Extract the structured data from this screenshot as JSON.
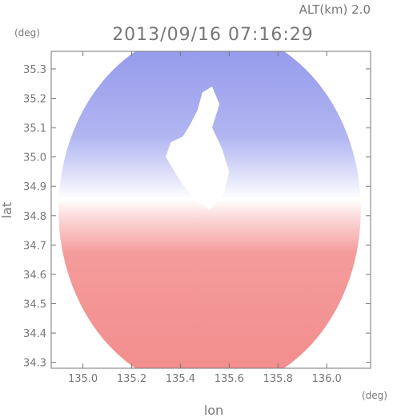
{
  "header": {
    "altitude_label": "ALT(km) 2.0",
    "timestamp": "2013/09/16 07:16:29"
  },
  "colors": {
    "toward_radar": "#7b82e6",
    "away_from_radar": "#f28b8b",
    "axis": "#777777"
  },
  "chart_data": {
    "type": "heatmap",
    "title": "2013/09/16 07:16:29",
    "subtitle": "ALT(km) 2.0",
    "xlabel": "lon",
    "ylabel": "lat",
    "x_unit": "(deg)",
    "y_unit": "(deg)",
    "xlim": [
      134.87,
      136.18
    ],
    "ylim": [
      34.28,
      35.36
    ],
    "x_ticks": [
      135.0,
      135.2,
      135.4,
      135.6,
      135.8,
      136.0
    ],
    "x_tick_labels": [
      "135.0",
      "135.2",
      "135.4",
      "135.6",
      "135.8",
      "136.0"
    ],
    "y_ticks": [
      34.3,
      34.4,
      34.5,
      34.6,
      34.7,
      34.8,
      34.9,
      35.0,
      35.1,
      35.2,
      35.3
    ],
    "y_tick_labels": [
      "34.3",
      "34.4",
      "34.5",
      "34.6",
      "34.7",
      "34.8",
      "34.9",
      "35.0",
      "35.1",
      "35.2",
      "35.3"
    ],
    "grid": false,
    "radar_site": {
      "lon": 135.52,
      "lat": 34.82
    },
    "coverage_radius_deg": 0.62,
    "pattern": "Doppler velocity: blue (approaching) north of the radar, red (receding) south of it, white near-zero band across the radar site"
  }
}
